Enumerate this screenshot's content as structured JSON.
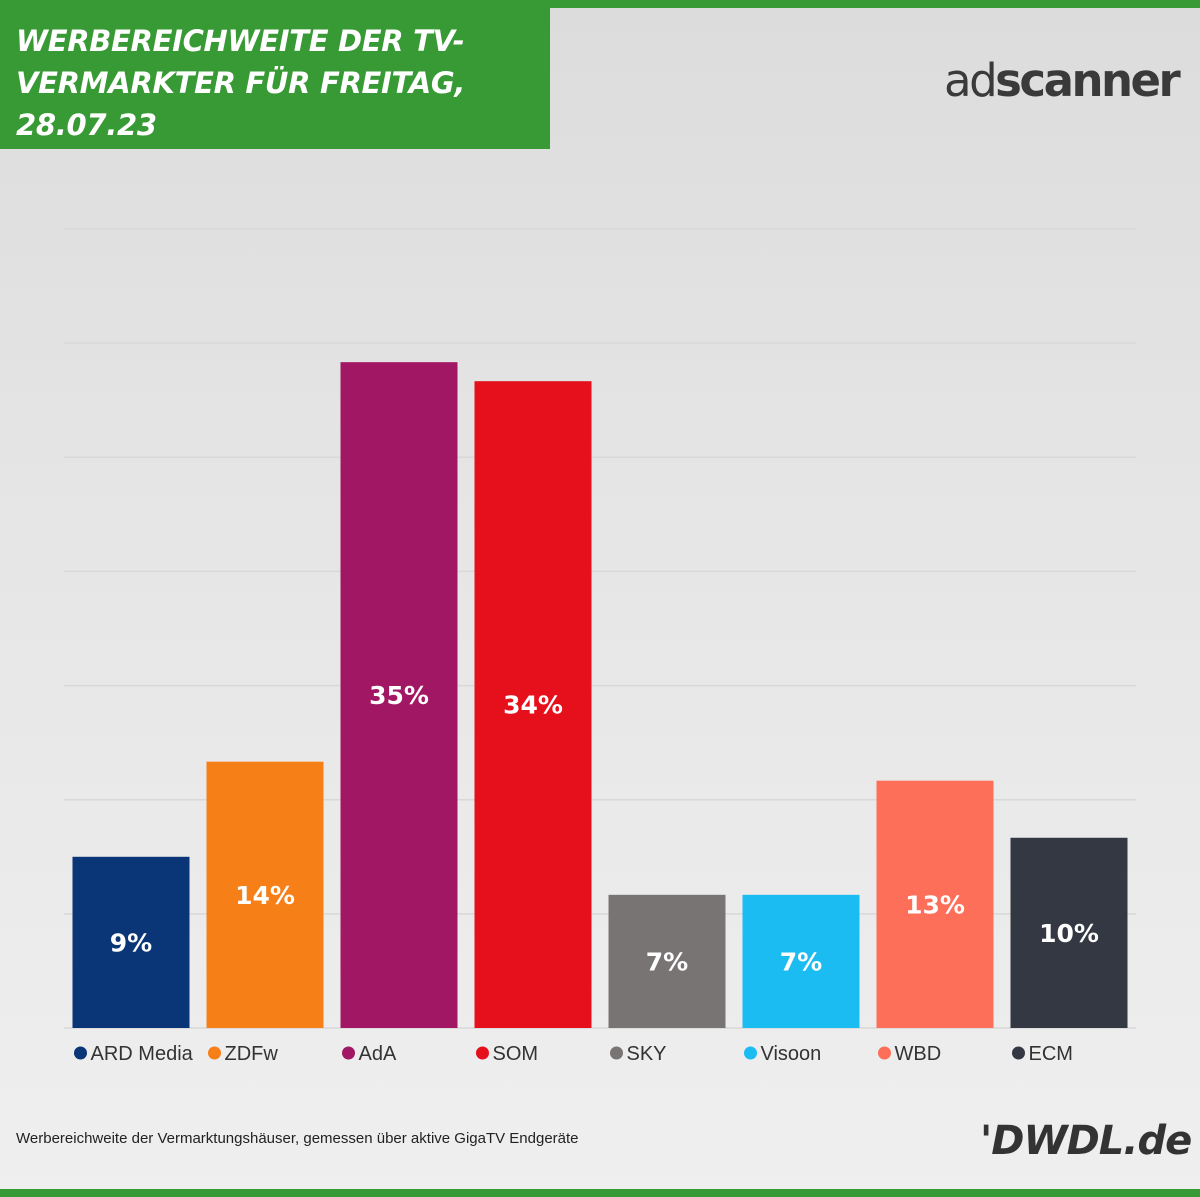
{
  "header": {
    "title": "WERBEREICHWEITE DER TV-VERMARKTER FÜR FREITAG, 28.07.23",
    "title_lines": [
      "WERBEREICHWEITE DER TV-",
      "VERMARKTER FÜR FREITAG,",
      "28.07.23"
    ]
  },
  "logos": {
    "adscanner": {
      "part1": "ad",
      "part2": "scanner"
    },
    "dwdl": "'DWDL.de"
  },
  "footnote": "Werbereichweite der Vermarktungshäuser, gemessen über aktive GigaTV Endgeräte",
  "colors": {
    "brand_green": "#379a34",
    "background": "#e4e4e4",
    "gridline": "#d8d8d8"
  },
  "chart_data": {
    "type": "bar",
    "title": "WERBEREICHWEITE DER TV-VERMARKTER FÜR FREITAG, 28.07.23",
    "categories": [
      "ARD Media",
      "ZDFw",
      "AdA",
      "SOM",
      "SKY",
      "Visoon",
      "WBD",
      "ECM"
    ],
    "values": [
      9,
      14,
      35,
      34,
      7,
      7,
      13,
      10
    ],
    "value_labels": [
      "9%",
      "14%",
      "35%",
      "34%",
      "7%",
      "7%",
      "13%",
      "10%"
    ],
    "unit": "%",
    "colors": [
      "#0a3577",
      "#f77f17",
      "#a21763",
      "#e5101b",
      "#797474",
      "#1abcf2",
      "#fe6f5a",
      "#343842"
    ],
    "ylim": [
      0,
      42
    ],
    "grid": true,
    "legend": "bottom",
    "xlabel": "",
    "ylabel": ""
  }
}
